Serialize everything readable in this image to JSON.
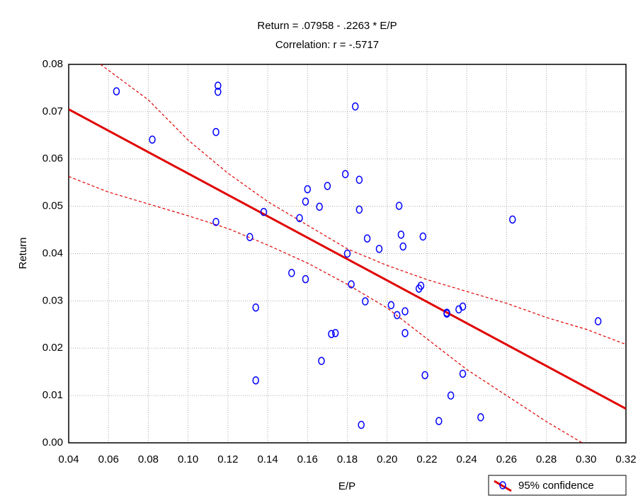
{
  "chart_data": {
    "type": "scatter",
    "title": "Return   = .07958 - .2263  * E/P",
    "subtitle": "Correlation: r = -.5717",
    "x_label": "E/P",
    "y_label": "Return",
    "xlim": [
      0.04,
      0.32
    ],
    "xticks": [
      0.04,
      0.06,
      0.08,
      {
        "value": 0.1,
        "label": "0.10"
      },
      0.12,
      0.14,
      0.16,
      0.18,
      {
        "value": 0.2,
        "label": "0.20"
      },
      0.22,
      0.24,
      0.26,
      0.28,
      {
        "value": 0.3,
        "label": "0.30"
      },
      0.32
    ],
    "ylim": [
      0,
      0.08
    ],
    "yticks": [
      {
        "value": 0,
        "label": "0.00"
      },
      0.01,
      0.02,
      0.03,
      0.04,
      0.05,
      0.06,
      0.07,
      0.08
    ],
    "grid": true,
    "legend": "bottom-right",
    "series": [
      {
        "name": "95% confidence",
        "color": "#0000ff",
        "x": [
          0.064,
          0.082,
          0.115,
          0.115,
          0.114,
          0.114,
          0.131,
          0.138,
          0.134,
          0.134,
          0.152,
          0.156,
          0.159,
          0.16,
          0.159,
          0.166,
          0.17,
          0.167,
          0.172,
          0.174,
          0.179,
          0.18,
          0.182,
          0.184,
          0.186,
          0.186,
          0.19,
          0.189,
          0.187,
          0.196,
          0.202,
          0.205,
          0.206,
          0.207,
          0.208,
          0.209,
          0.209,
          0.216,
          0.217,
          0.218,
          0.219,
          0.226,
          0.23,
          0.23,
          0.232,
          0.236,
          0.238,
          0.238,
          0.247,
          0.263,
          0.306
        ],
        "values": [
          0.0743,
          0.0641,
          0.0755,
          0.0742,
          0.0657,
          0.0467,
          0.0435,
          0.0488,
          0.0286,
          0.0132,
          0.0359,
          0.0475,
          0.051,
          0.0536,
          0.0346,
          0.0499,
          0.0543,
          0.0173,
          0.023,
          0.0232,
          0.0568,
          0.04,
          0.0335,
          0.0711,
          0.0556,
          0.0493,
          0.0432,
          0.0299,
          0.0038,
          0.041,
          0.0291,
          0.027,
          0.0501,
          0.044,
          0.0415,
          0.0232,
          0.0278,
          0.0326,
          0.0332,
          0.0436,
          0.0143,
          0.0046,
          0.0273,
          0.0275,
          0.01,
          0.0282,
          0.0288,
          0.0146,
          0.0054,
          0.0472,
          0.0257
        ]
      }
    ],
    "fit": {
      "color": "#e00000",
      "x": [
        0.04,
        0.32
      ],
      "values": [
        0.0705,
        0.0072
      ]
    },
    "band_upper": {
      "color": "#e00000",
      "x": [
        0.056,
        0.08,
        0.1,
        0.12,
        0.14,
        0.16,
        0.18,
        0.2,
        0.22,
        0.24,
        0.26,
        0.28,
        0.3,
        0.32
      ],
      "values": [
        0.08,
        0.0725,
        0.064,
        0.057,
        0.051,
        0.046,
        0.041,
        0.0375,
        0.0345,
        0.032,
        0.0295,
        0.0265,
        0.024,
        0.0208
      ]
    },
    "band_lower": {
      "color": "#e00000",
      "x": [
        0.04,
        0.06,
        0.08,
        0.1,
        0.12,
        0.14,
        0.16,
        0.18,
        0.2,
        0.22,
        0.24,
        0.26,
        0.28,
        0.298
      ],
      "values": [
        0.0563,
        0.053,
        0.0505,
        0.048,
        0.0453,
        0.0418,
        0.038,
        0.0335,
        0.0285,
        0.022,
        0.0155,
        0.01,
        0.0045,
        0
      ]
    }
  }
}
